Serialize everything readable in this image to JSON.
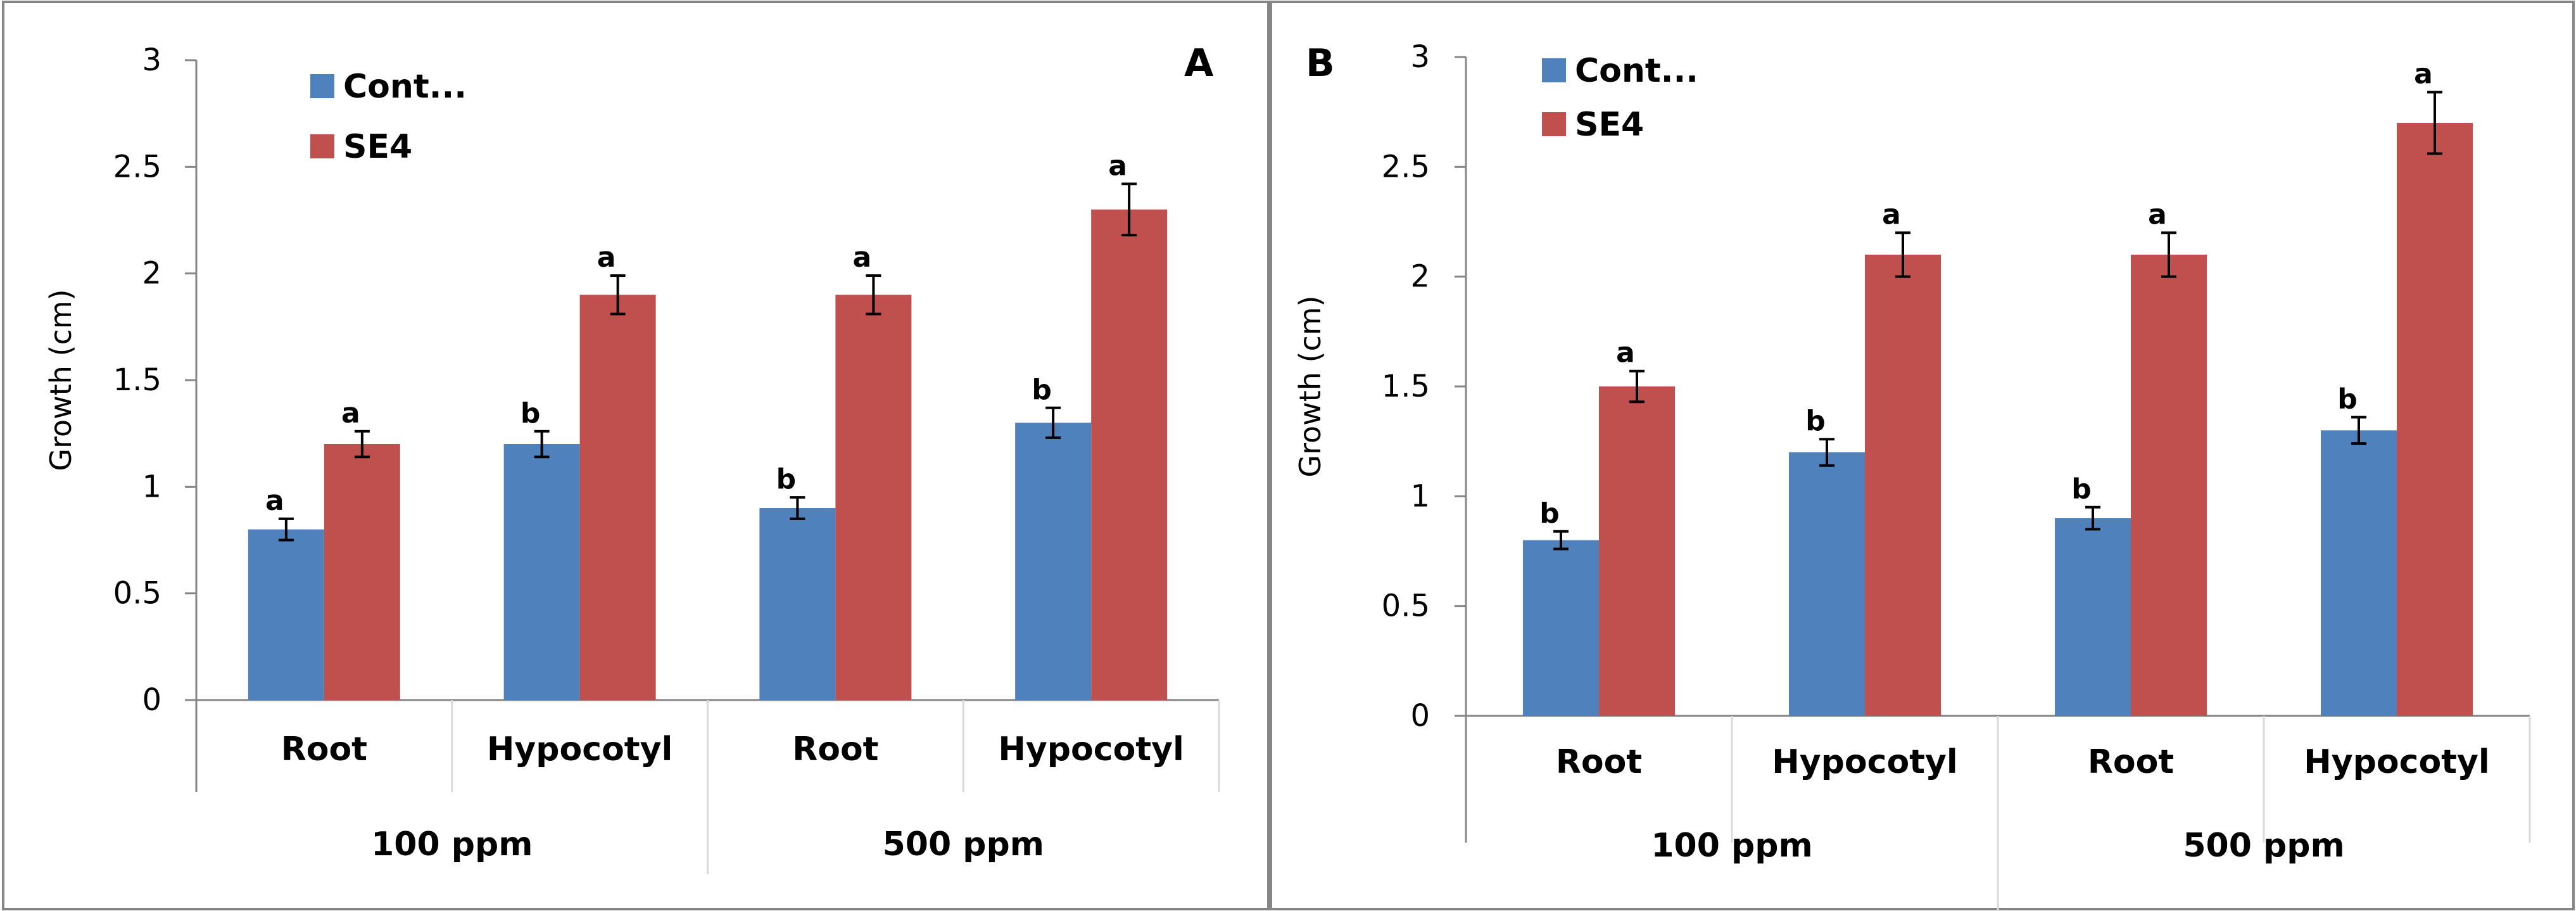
{
  "chart_data": [
    {
      "type": "bar",
      "panel_label": "A",
      "ylabel": "Growth (cm)",
      "ylim": [
        0,
        3
      ],
      "yticks": [
        "0",
        "0.5",
        "1",
        "1.5",
        "2",
        "2.5",
        "3"
      ],
      "categories": [
        "Root",
        "Hypocotyl",
        "Root",
        "Hypocotyl"
      ],
      "groups": [
        {
          "label": "100 ppm",
          "categories": [
            0,
            1
          ]
        },
        {
          "label": "500 ppm",
          "categories": [
            2,
            3
          ]
        }
      ],
      "legend_position": "top-left",
      "series": [
        {
          "name": "Cont...",
          "color": "#4F81BD",
          "values": [
            0.8,
            1.2,
            0.9,
            1.3
          ],
          "errors": [
            0.05,
            0.06,
            0.05,
            0.07
          ],
          "labels": [
            "a",
            "b",
            "b",
            "b"
          ]
        },
        {
          "name": "SE4",
          "color": "#C0504D",
          "values": [
            1.2,
            1.9,
            1.9,
            2.3
          ],
          "errors": [
            0.06,
            0.09,
            0.09,
            0.12
          ],
          "labels": [
            "a",
            "a",
            "a",
            "a"
          ]
        }
      ]
    },
    {
      "type": "bar",
      "panel_label": "B",
      "ylabel": "Growth (cm)",
      "ylim": [
        0,
        3
      ],
      "yticks": [
        "0",
        "0.5",
        "1",
        "1.5",
        "2",
        "2.5",
        "3"
      ],
      "categories": [
        "Root",
        "Hypocotyl",
        "Root",
        "Hypocotyl"
      ],
      "groups": [
        {
          "label": "100 ppm",
          "categories": [
            0,
            1
          ]
        },
        {
          "label": "500 ppm",
          "categories": [
            2,
            3
          ]
        }
      ],
      "legend_position": "top-left",
      "series": [
        {
          "name": "Cont...",
          "color": "#4F81BD",
          "values": [
            0.8,
            1.2,
            0.9,
            1.3
          ],
          "errors": [
            0.04,
            0.06,
            0.05,
            0.06
          ],
          "labels": [
            "b",
            "b",
            "b",
            "b"
          ]
        },
        {
          "name": "SE4",
          "color": "#C0504D",
          "values": [
            1.5,
            2.1,
            2.1,
            2.7
          ],
          "errors": [
            0.07,
            0.1,
            0.1,
            0.14
          ],
          "labels": [
            "a",
            "a",
            "a",
            "a"
          ]
        }
      ]
    }
  ]
}
